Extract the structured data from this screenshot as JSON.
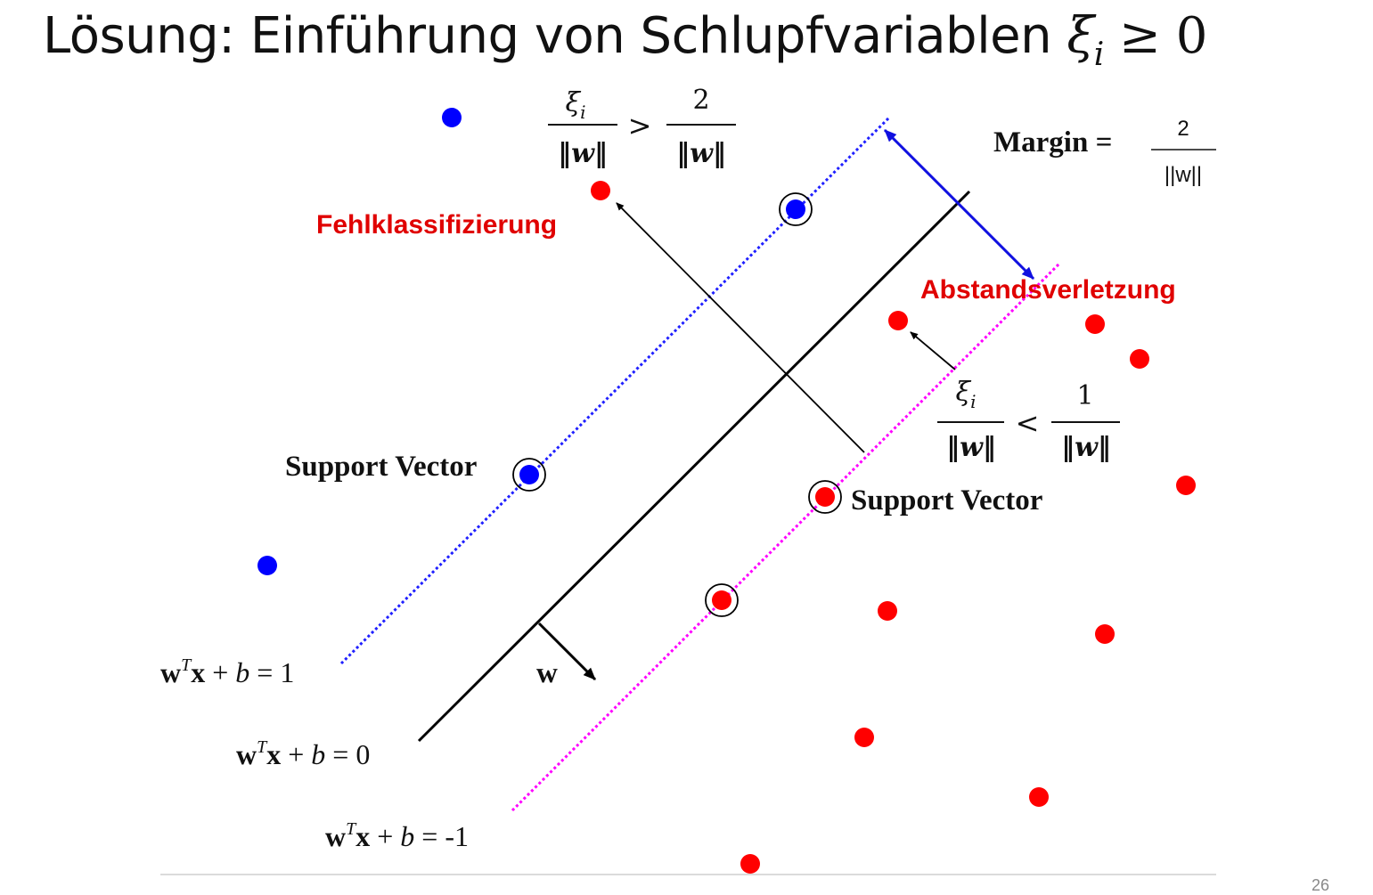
{
  "slide": {
    "title_text": "Lösung: Einführung von Schlupfvariablen ",
    "title_symbol": "ξ",
    "title_subscript": "i",
    "title_relation": " ≥ 0",
    "page_number": "26"
  },
  "diagram": {
    "margin_label": "Margin =",
    "margin_numerator": "2",
    "margin_denominator": "||w||",
    "misclassification_label": "Fehlklassifizierung",
    "margin_violation_label": "Abstandsverletzung",
    "support_vector_left": "Support Vector",
    "support_vector_right": "Support Vector",
    "w_label": "w",
    "eq_positive": {
      "w": "w",
      "t": "T",
      "x": "x",
      "rest1": " + ",
      "b": "b",
      "rest2": " = 1"
    },
    "eq_zero": {
      "w": "w",
      "t": "T",
      "x": "x",
      "rest1": " + ",
      "b": "b",
      "rest2": " = 0"
    },
    "eq_negative": {
      "w": "w",
      "t": "T",
      "x": "x",
      "rest1": " + ",
      "b": "b",
      "rest2": " = -1"
    },
    "formula_top": {
      "num_left_symbol": "ξ",
      "num_left_sub": "i",
      "den_left": "‖w‖",
      "relation": ">",
      "num_right": "2",
      "den_right": "‖w‖"
    },
    "formula_right": {
      "num_left_symbol": "ξ",
      "num_left_sub": "i",
      "den_left": "‖w‖",
      "relation": "<",
      "num_right": "1",
      "den_right": "‖w‖"
    },
    "colors": {
      "class_positive": "#0000ff",
      "class_negative": "#ff0000",
      "margin_line_positive": "#2020ff",
      "margin_line_negative": "#ff00ff",
      "hyperplane": "#000000",
      "margin_arrow": "#1010e0",
      "annotation_text": "#e00000"
    }
  }
}
